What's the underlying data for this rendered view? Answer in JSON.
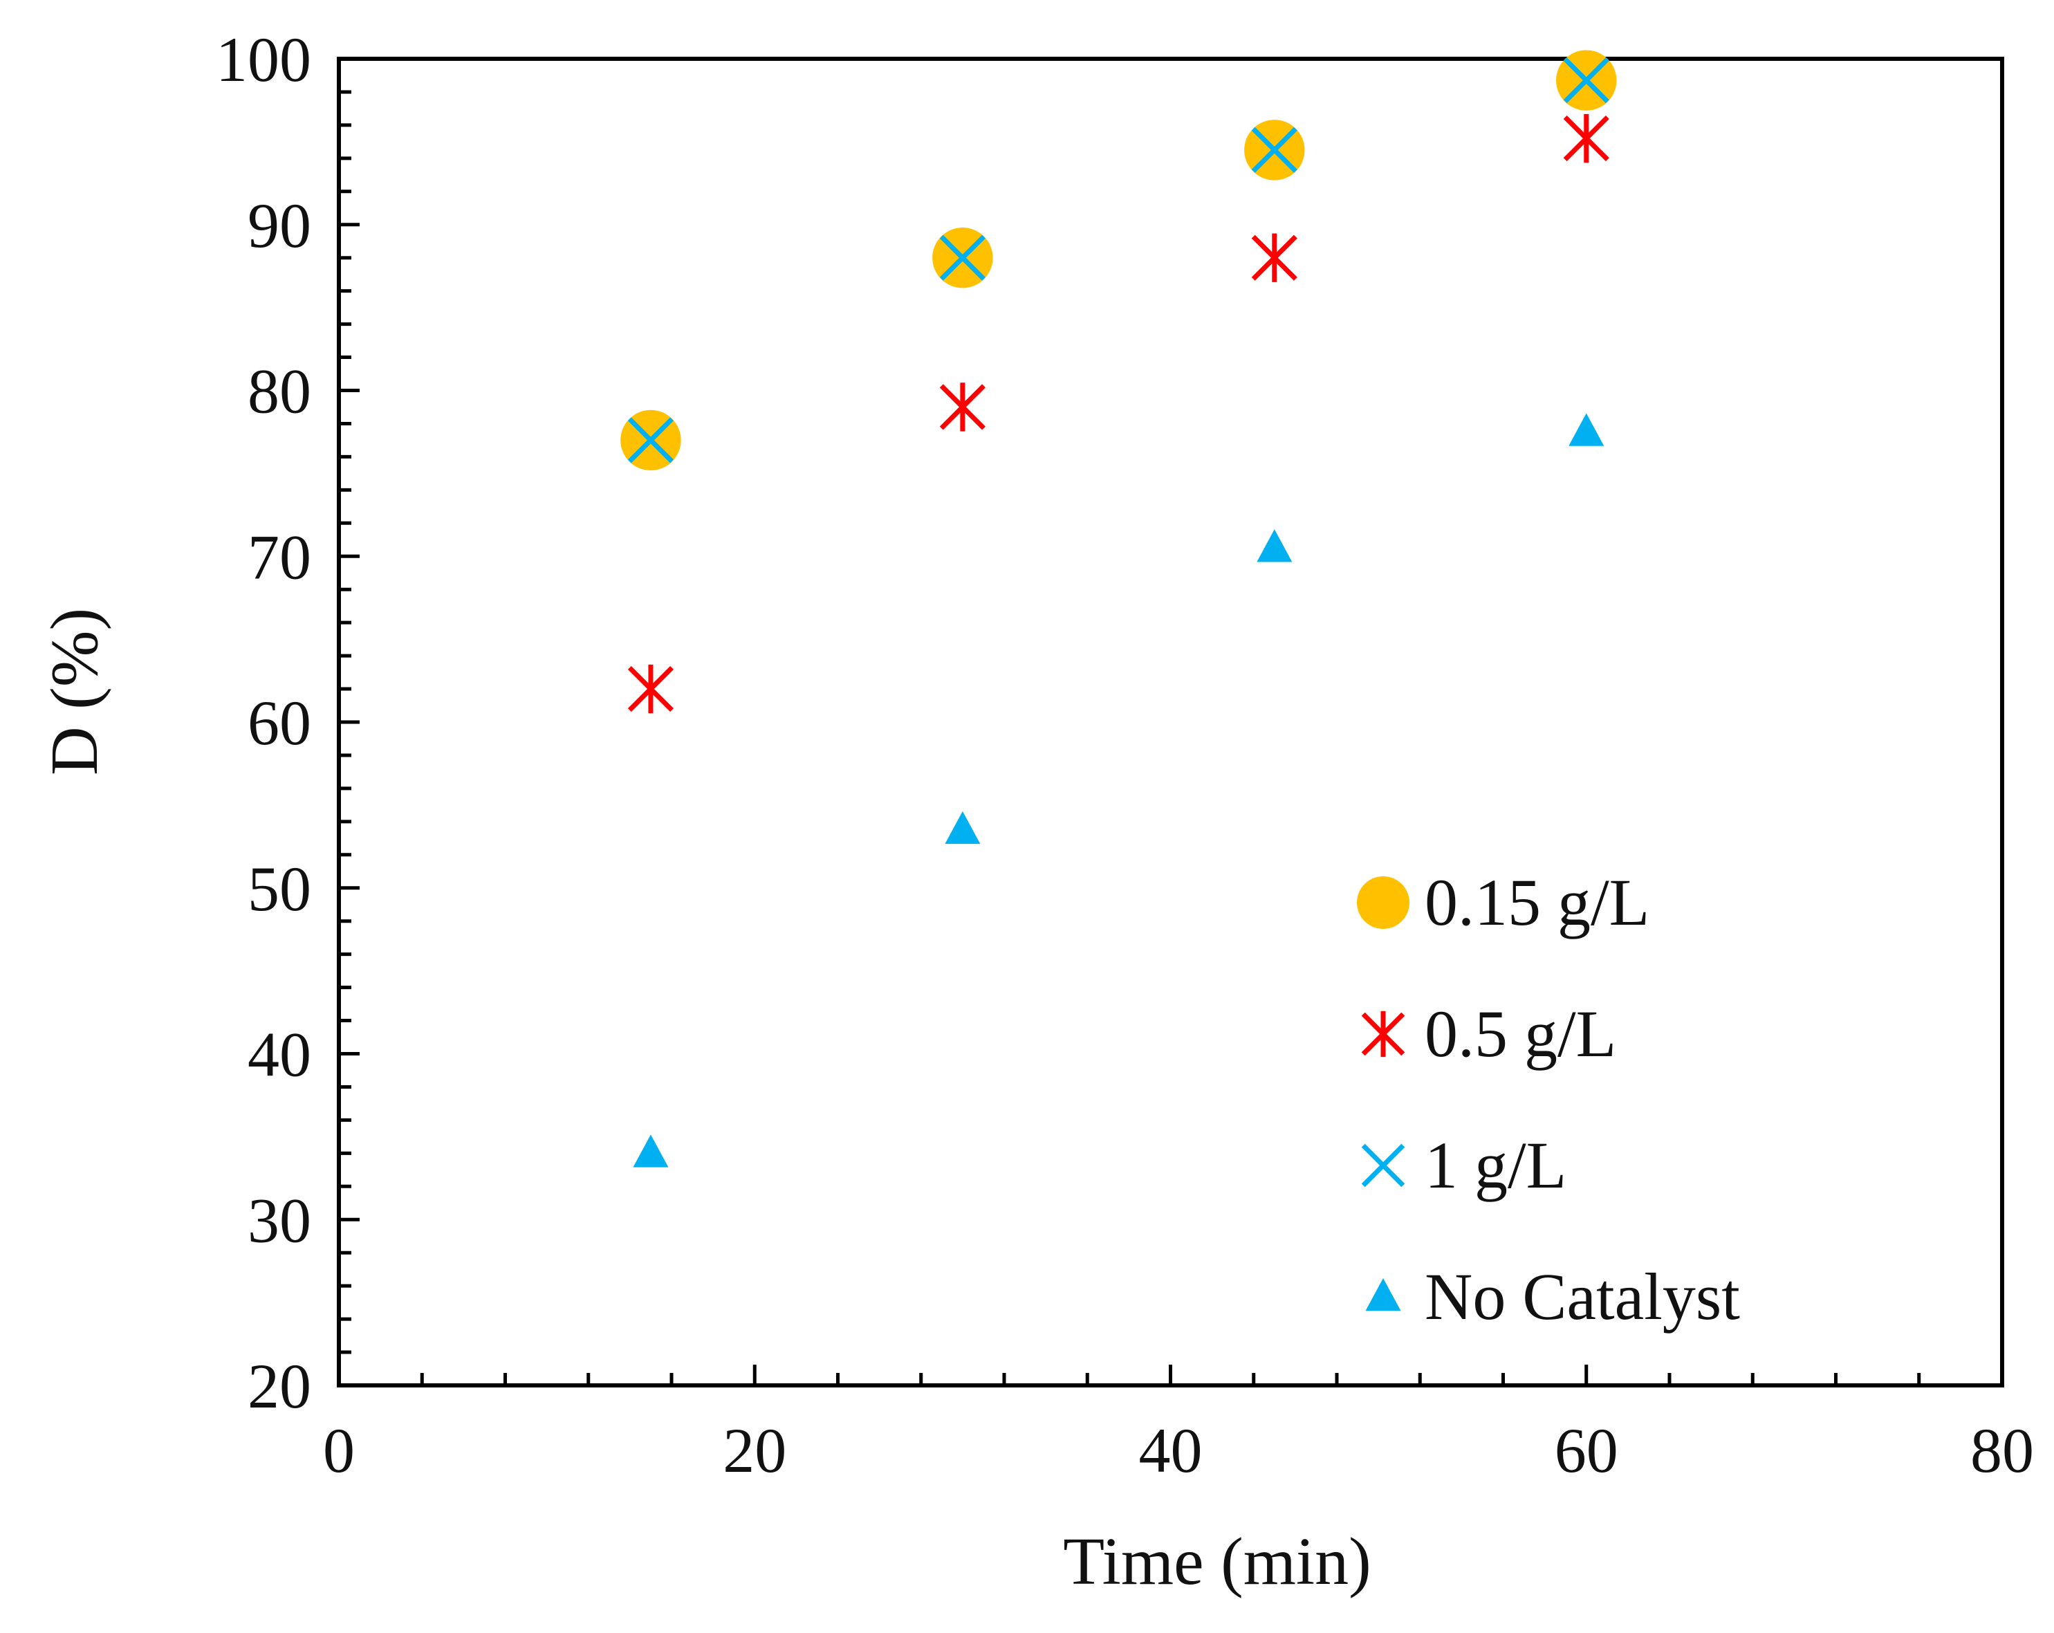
{
  "chart_data": {
    "type": "scatter",
    "title": "",
    "xlabel": "Time (min)",
    "ylabel": "D (%)",
    "xlim": [
      0,
      80
    ],
    "ylim": [
      20,
      100
    ],
    "xticks": [
      0,
      20,
      40,
      60,
      80
    ],
    "yticks": [
      20,
      30,
      40,
      50,
      60,
      70,
      80,
      90,
      100
    ],
    "grid": false,
    "legend_position": "bottom-right",
    "series": [
      {
        "name": "0.15 g/L",
        "marker": "circle",
        "color": "#FFC000",
        "x": [
          15,
          30,
          45,
          60
        ],
        "y": [
          77,
          88,
          94.5,
          98.7
        ]
      },
      {
        "name": "0.5 g/L",
        "marker": "asterisk",
        "color": "#FF0000",
        "x": [
          15,
          30,
          45,
          60
        ],
        "y": [
          62,
          79,
          88,
          95.2
        ]
      },
      {
        "name": "1 g/L",
        "marker": "x",
        "color": "#00B0F0",
        "x": [
          15,
          30,
          45,
          60
        ],
        "y": [
          77,
          88,
          94.5,
          98.7
        ]
      },
      {
        "name": "No Catalyst",
        "marker": "triangle",
        "color": "#00B0F0",
        "x": [
          15,
          30,
          45,
          60
        ],
        "y": [
          34,
          53.5,
          70.5,
          77.5
        ]
      }
    ]
  }
}
